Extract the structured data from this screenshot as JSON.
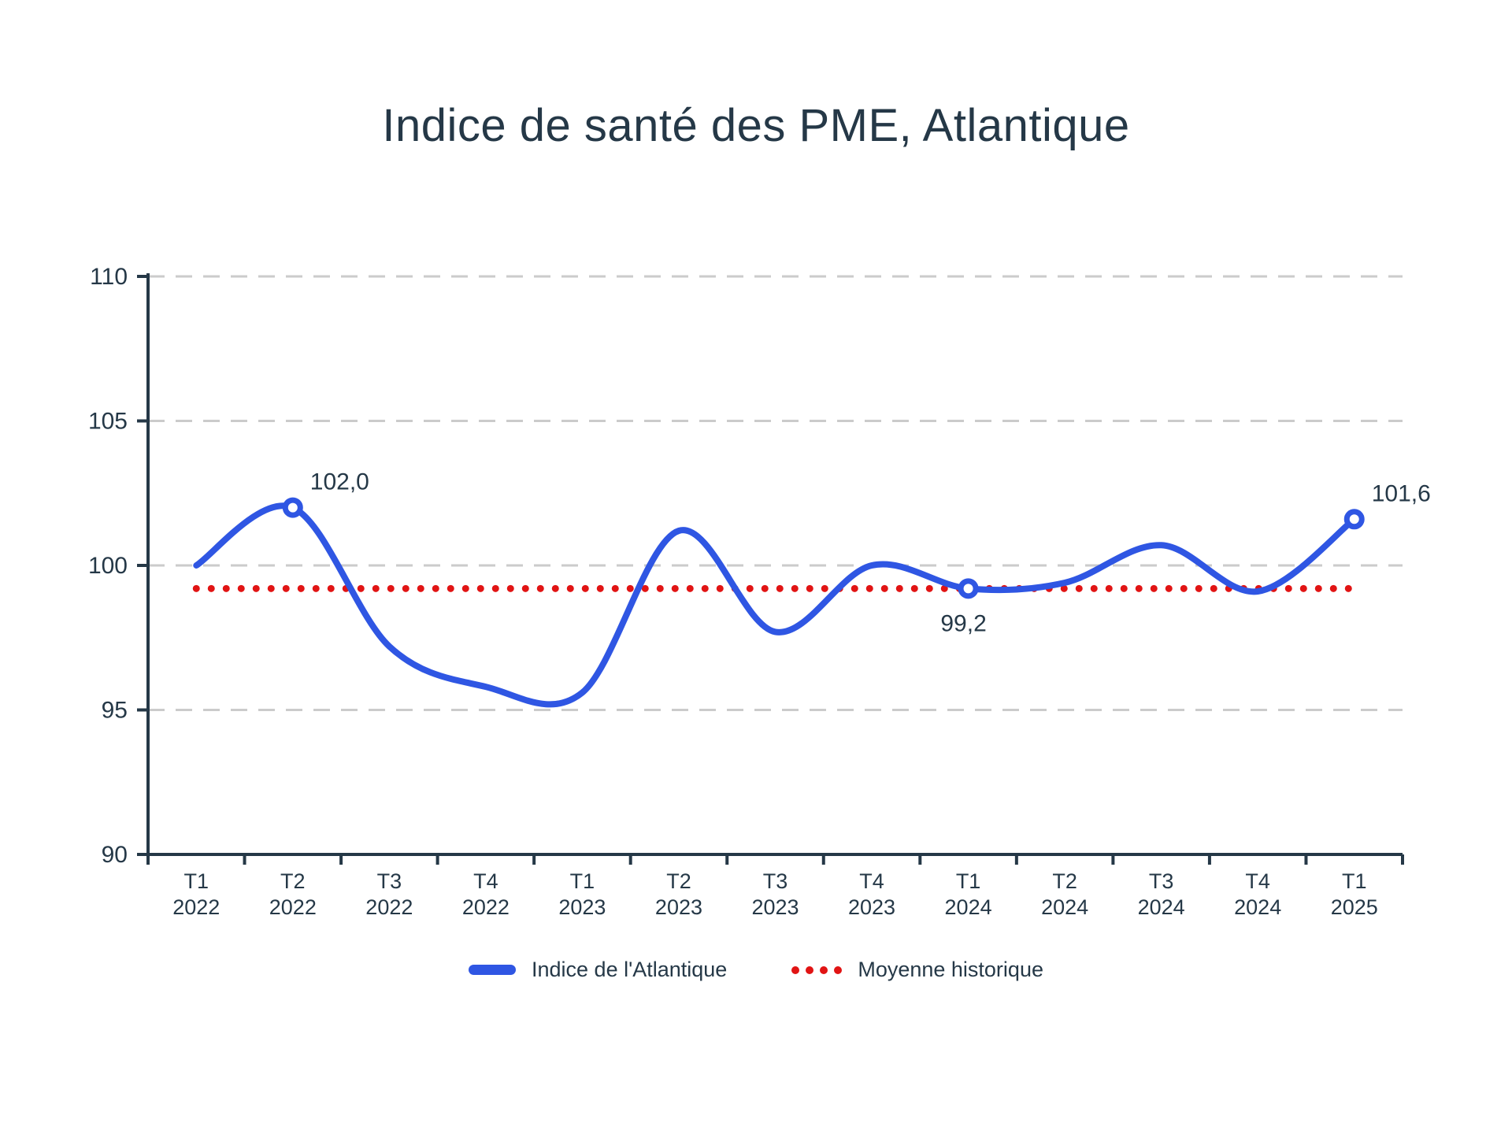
{
  "title": "Indice de santé des PME, Atlantique",
  "colors": {
    "accent_blue": "#2f56e3",
    "accent_red": "#e11414",
    "text_dark": "#253847",
    "grid_gray": "#cbcbcb",
    "background": "#ffffff"
  },
  "legend": {
    "items": [
      {
        "label": "Indice de l'Atlantique",
        "swatch": "blue-line"
      },
      {
        "label": "Moyenne historique",
        "swatch": "red-dots"
      }
    ]
  },
  "chart_data": {
    "type": "line",
    "title": "Indice de santé des PME, Atlantique",
    "xlabel": "",
    "ylabel": "",
    "ylim": [
      90,
      110
    ],
    "yticks": [
      90,
      95,
      100,
      105,
      110
    ],
    "grid": "horizontal-dashed",
    "legend_position": "bottom",
    "categories": [
      {
        "quarter": "T1",
        "year": "2022"
      },
      {
        "quarter": "T2",
        "year": "2022"
      },
      {
        "quarter": "T3",
        "year": "2022"
      },
      {
        "quarter": "T4",
        "year": "2022"
      },
      {
        "quarter": "T1",
        "year": "2023"
      },
      {
        "quarter": "T2",
        "year": "2023"
      },
      {
        "quarter": "T3",
        "year": "2023"
      },
      {
        "quarter": "T4",
        "year": "2023"
      },
      {
        "quarter": "T1",
        "year": "2024"
      },
      {
        "quarter": "T2",
        "year": "2024"
      },
      {
        "quarter": "T3",
        "year": "2024"
      },
      {
        "quarter": "T4",
        "year": "2024"
      },
      {
        "quarter": "T1",
        "year": "2025"
      }
    ],
    "series": [
      {
        "name": "Indice de l'Atlantique",
        "style": "solid-smooth",
        "color": "#2f56e3",
        "values": [
          100.0,
          102.0,
          97.2,
          95.8,
          95.6,
          101.2,
          97.7,
          100.0,
          99.2,
          99.4,
          100.7,
          99.1,
          101.6
        ]
      },
      {
        "name": "Moyenne historique",
        "style": "dotted-constant",
        "color": "#e11414",
        "value": 99.2
      }
    ],
    "annotations": [
      {
        "index": 1,
        "label": "102,0",
        "value": 102.0,
        "position": "above-right"
      },
      {
        "index": 8,
        "label": "99,2",
        "value": 99.2,
        "position": "below"
      },
      {
        "index": 12,
        "label": "101,6",
        "value": 101.6,
        "position": "above-right"
      }
    ]
  }
}
